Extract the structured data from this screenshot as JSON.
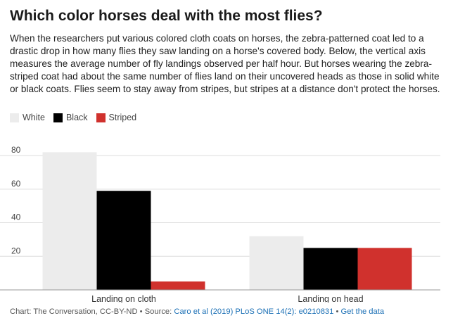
{
  "title": "Which color horses deal with the most flies?",
  "subtitle": "When the researchers put various colored cloth coats on horses, the zebra-patterned coat led to a drastic drop in how many flies they saw landing on a horse's covered body. Below, the vertical axis measures the average number of fly landings observed per half hour. But horses wearing the zebra-striped coat had about the same number of flies land on their uncovered heads as those in solid white or black coats. Flies seem to stay away from stripes, but stripes at a distance don't protect the horses.",
  "legend": [
    {
      "label": "White",
      "color": "#ececec"
    },
    {
      "label": "Black",
      "color": "#000000"
    },
    {
      "label": "Striped",
      "color": "#d0312d"
    }
  ],
  "chart_data": {
    "type": "bar",
    "categories": [
      "Landing on cloth",
      "Landing on head"
    ],
    "series": [
      {
        "name": "White",
        "color": "#ececec",
        "values": [
          82,
          32
        ]
      },
      {
        "name": "Black",
        "color": "#000000",
        "values": [
          59,
          25
        ]
      },
      {
        "name": "Striped",
        "color": "#d0312d",
        "values": [
          5,
          25
        ]
      }
    ],
    "yticks": [
      "20",
      "40",
      "60",
      "80"
    ],
    "ylim": [
      0,
      88
    ],
    "grid": true,
    "legend_position": "top-left"
  },
  "footer": {
    "prefix": "Chart: The Conversation, CC-BY-ND • Source: ",
    "source_link": "Caro et al (2019) PLoS ONE 14(2): e0210831",
    "separator": " • ",
    "data_link": "Get the data"
  }
}
